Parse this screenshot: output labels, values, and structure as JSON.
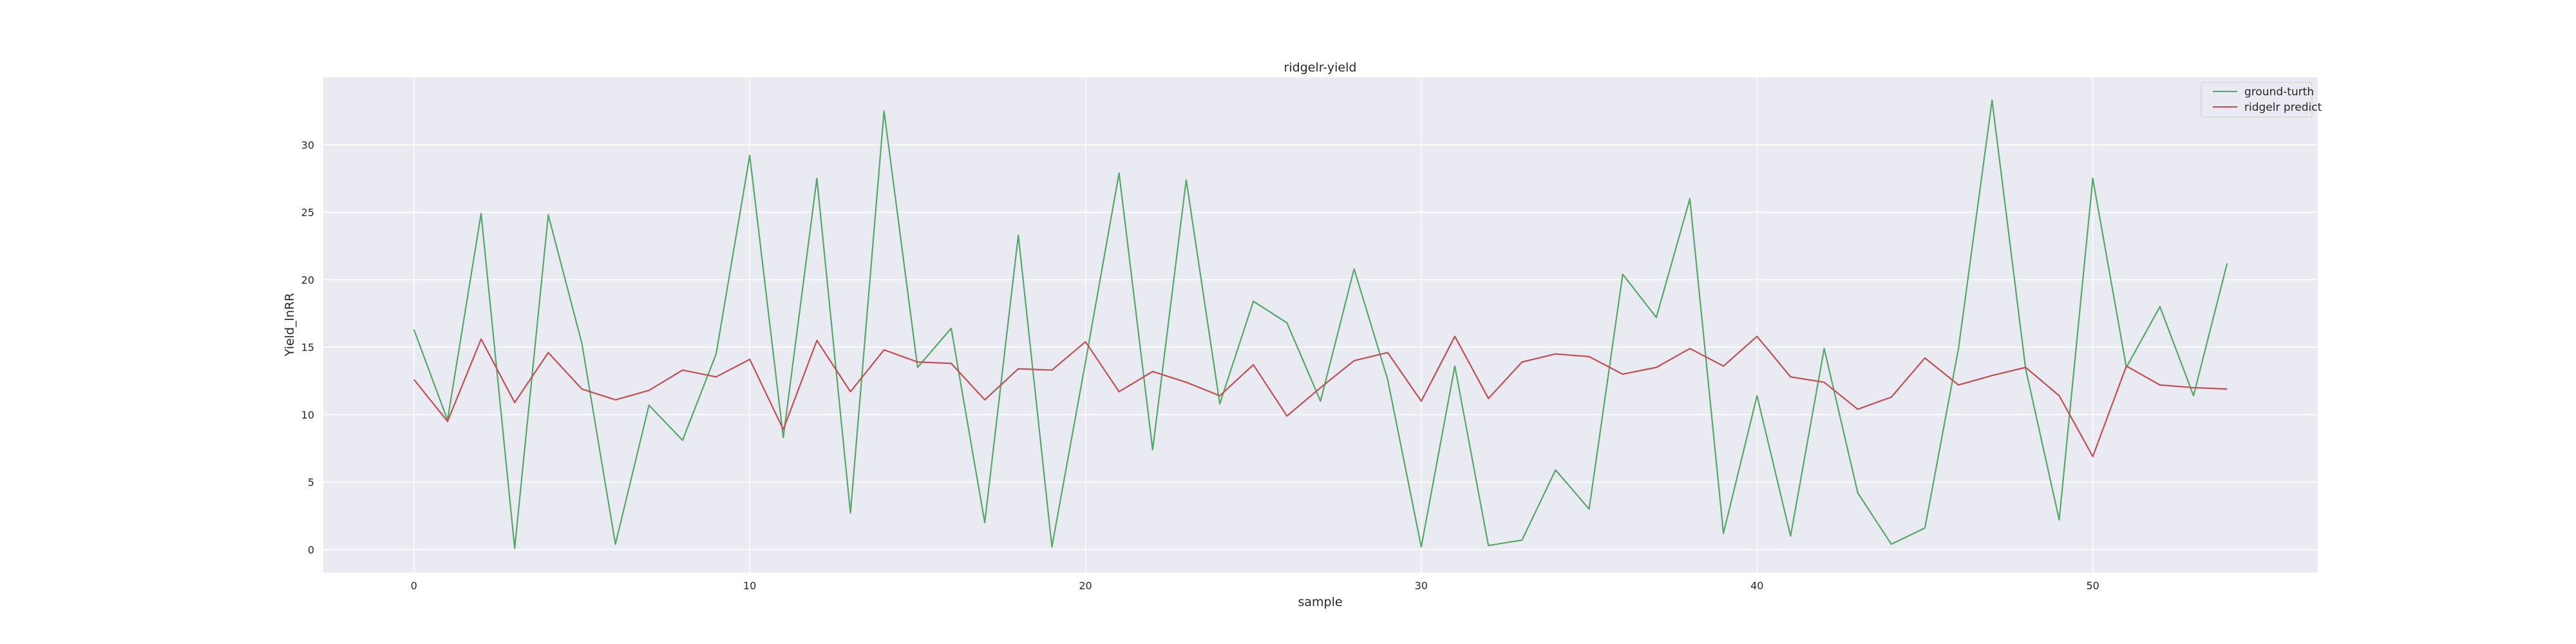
{
  "chart_data": {
    "type": "line",
    "title": "ridgelr-yield",
    "xlabel": "sample",
    "ylabel": "Yield_lnRR",
    "xlim": [
      -2.7,
      56.7
    ],
    "ylim": [
      -1.7,
      35.0
    ],
    "xticks": [
      0,
      10,
      20,
      30,
      40,
      50
    ],
    "yticks": [
      0,
      5,
      10,
      15,
      20,
      25,
      30
    ],
    "grid": true,
    "legend_position": "top-right",
    "x": [
      0,
      1,
      2,
      3,
      4,
      5,
      6,
      7,
      8,
      9,
      10,
      11,
      12,
      13,
      14,
      15,
      16,
      17,
      18,
      19,
      20,
      21,
      22,
      23,
      24,
      25,
      26,
      27,
      28,
      29,
      30,
      31,
      32,
      33,
      34,
      35,
      36,
      37,
      38,
      39,
      40,
      41,
      42,
      43,
      44,
      45,
      46,
      47,
      48,
      49,
      50,
      51,
      52,
      53,
      54
    ],
    "series": [
      {
        "name": "ground-turth",
        "color": "#55a868",
        "values": [
          16.3,
          9.6,
          24.9,
          0.1,
          24.8,
          15.3,
          0.4,
          10.7,
          8.1,
          14.5,
          29.2,
          8.3,
          27.5,
          2.7,
          32.5,
          13.5,
          16.4,
          2.0,
          23.3,
          0.2,
          13.9,
          27.9,
          7.4,
          27.4,
          10.8,
          18.4,
          16.8,
          11.0,
          20.8,
          12.6,
          0.2,
          13.6,
          0.3,
          0.7,
          5.9,
          3.0,
          20.4,
          17.2,
          26.0,
          1.2,
          11.4,
          1.0,
          14.9,
          4.2,
          0.4,
          1.6,
          14.9,
          33.3,
          13.4,
          2.2,
          27.5,
          13.5,
          18.0,
          11.4,
          21.2
        ]
      },
      {
        "name": "ridgelr predict",
        "color": "#c44e52",
        "values": [
          12.6,
          9.5,
          15.6,
          10.9,
          14.6,
          11.9,
          11.1,
          11.8,
          13.3,
          12.8,
          14.1,
          8.9,
          15.5,
          11.7,
          14.8,
          13.9,
          13.8,
          11.1,
          13.4,
          13.3,
          15.4,
          11.7,
          13.2,
          12.4,
          11.4,
          13.7,
          9.9,
          12.0,
          14.0,
          14.6,
          11.0,
          15.8,
          11.2,
          13.9,
          14.5,
          14.3,
          13.0,
          13.5,
          14.9,
          13.6,
          15.8,
          12.8,
          12.4,
          10.4,
          11.3,
          14.2,
          12.2,
          12.9,
          13.5,
          11.4,
          6.9,
          13.6,
          12.2,
          12.0,
          11.9
        ]
      }
    ]
  }
}
